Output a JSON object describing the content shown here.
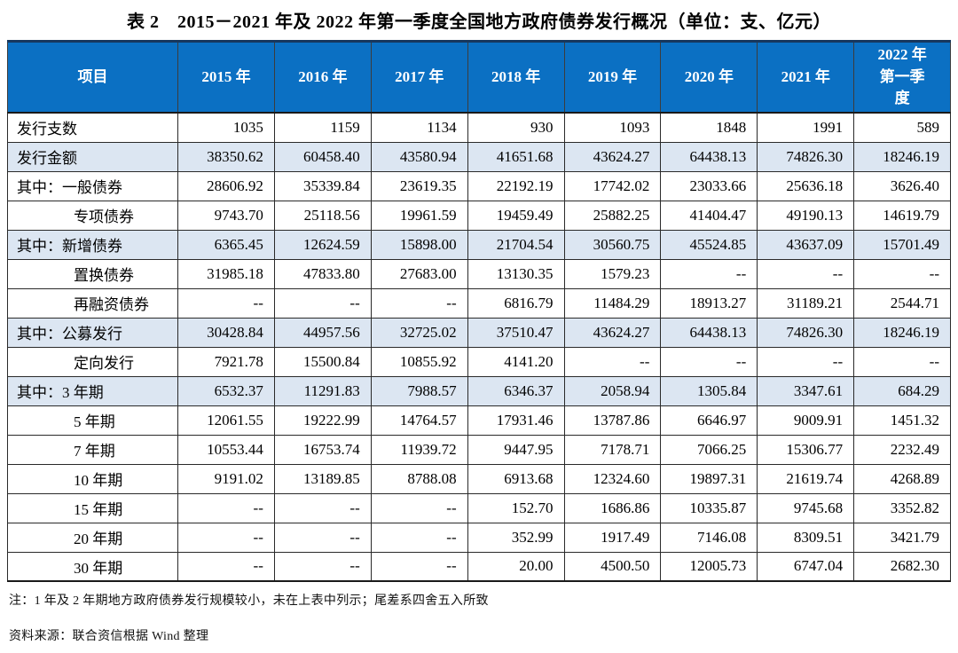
{
  "title": "表 2　2015－2021 年及 2022 年第一季度全国地方政府债券发行概况（单位：支、亿元）",
  "colors": {
    "header_bg": "#0B70C3",
    "header_text": "#FFFFFF",
    "highlight_row_bg": "#DCE6F2",
    "border": "#2A2A2A",
    "top_border": "#17375E"
  },
  "table": {
    "columns": [
      "项目",
      "2015 年",
      "2016 年",
      "2017 年",
      "2018 年",
      "2019 年",
      "2020 年",
      "2021 年",
      "2022 年第一季度"
    ],
    "rows": [
      {
        "label": "发行支数",
        "indent": false,
        "highlight": false,
        "values": [
          "1035",
          "1159",
          "1134",
          "930",
          "1093",
          "1848",
          "1991",
          "589"
        ]
      },
      {
        "label": "发行金额",
        "indent": false,
        "highlight": true,
        "values": [
          "38350.62",
          "60458.40",
          "43580.94",
          "41651.68",
          "43624.27",
          "64438.13",
          "74826.30",
          "18246.19"
        ]
      },
      {
        "label": "其中：一般债券",
        "indent": false,
        "highlight": false,
        "values": [
          "28606.92",
          "35339.84",
          "23619.35",
          "22192.19",
          "17742.02",
          "23033.66",
          "25636.18",
          "3626.40"
        ]
      },
      {
        "label": "专项债券",
        "indent": true,
        "highlight": false,
        "values": [
          "9743.70",
          "25118.56",
          "19961.59",
          "19459.49",
          "25882.25",
          "41404.47",
          "49190.13",
          "14619.79"
        ]
      },
      {
        "label": "其中：新增债券",
        "indent": false,
        "highlight": true,
        "values": [
          "6365.45",
          "12624.59",
          "15898.00",
          "21704.54",
          "30560.75",
          "45524.85",
          "43637.09",
          "15701.49"
        ]
      },
      {
        "label": "置换债券",
        "indent": true,
        "highlight": false,
        "values": [
          "31985.18",
          "47833.80",
          "27683.00",
          "13130.35",
          "1579.23",
          "--",
          "--",
          "--"
        ]
      },
      {
        "label": "再融资债券",
        "indent": true,
        "highlight": false,
        "values": [
          "--",
          "--",
          "--",
          "6816.79",
          "11484.29",
          "18913.27",
          "31189.21",
          "2544.71"
        ]
      },
      {
        "label": "其中：公募发行",
        "indent": false,
        "highlight": true,
        "values": [
          "30428.84",
          "44957.56",
          "32725.02",
          "37510.47",
          "43624.27",
          "64438.13",
          "74826.30",
          "18246.19"
        ]
      },
      {
        "label": "定向发行",
        "indent": true,
        "highlight": false,
        "values": [
          "7921.78",
          "15500.84",
          "10855.92",
          "4141.20",
          "--",
          "--",
          "--",
          "--"
        ]
      },
      {
        "label": "其中：3 年期",
        "indent": false,
        "highlight": true,
        "values": [
          "6532.37",
          "11291.83",
          "7988.57",
          "6346.37",
          "2058.94",
          "1305.84",
          "3347.61",
          "684.29"
        ]
      },
      {
        "label": "5 年期",
        "indent": true,
        "highlight": false,
        "values": [
          "12061.55",
          "19222.99",
          "14764.57",
          "17931.46",
          "13787.86",
          "6646.97",
          "9009.91",
          "1451.32"
        ]
      },
      {
        "label": "7 年期",
        "indent": true,
        "highlight": false,
        "values": [
          "10553.44",
          "16753.74",
          "11939.72",
          "9447.95",
          "7178.71",
          "7066.25",
          "15306.77",
          "2232.49"
        ]
      },
      {
        "label": "10 年期",
        "indent": true,
        "highlight": false,
        "values": [
          "9191.02",
          "13189.85",
          "8788.08",
          "6913.68",
          "12324.60",
          "19897.31",
          "21619.74",
          "4268.89"
        ]
      },
      {
        "label": "15 年期",
        "indent": true,
        "highlight": false,
        "values": [
          "--",
          "--",
          "--",
          "152.70",
          "1686.86",
          "10335.87",
          "9745.68",
          "3352.82"
        ]
      },
      {
        "label": "20 年期",
        "indent": true,
        "highlight": false,
        "values": [
          "--",
          "--",
          "--",
          "352.99",
          "1917.49",
          "7146.08",
          "8309.51",
          "3421.79"
        ]
      },
      {
        "label": "30 年期",
        "indent": true,
        "highlight": false,
        "values": [
          "--",
          "--",
          "--",
          "20.00",
          "4500.50",
          "12005.73",
          "6747.04",
          "2682.30"
        ]
      }
    ]
  },
  "notes": {
    "note": "注：1 年及 2 年期地方政府债券发行规模较小，未在上表中列示；尾差系四舍五入所致",
    "source": "资料来源：联合资信根据 Wind 整理"
  }
}
